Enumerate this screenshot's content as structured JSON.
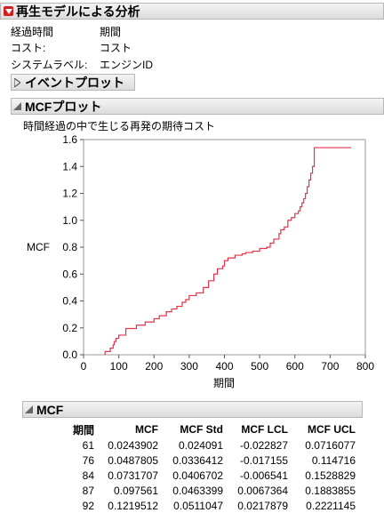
{
  "report": {
    "title": "再生モデルによる分析",
    "info": [
      {
        "key": "経過時間",
        "value": "期間"
      },
      {
        "key": "コスト:",
        "value": "コスト"
      },
      {
        "key": "システムラベル:",
        "value": "エンジンID"
      }
    ]
  },
  "event_plot": {
    "title": "イベントプロット"
  },
  "mcf_plot": {
    "title": "MCFプロット",
    "chart_title": "時間経過の中で生じる再発の期待コスト"
  },
  "chart_data": {
    "type": "line",
    "title": "時間経過の中で生じる再発の期待コスト",
    "xlabel": "期間",
    "ylabel": "MCF",
    "xlim": [
      0,
      800
    ],
    "ylim": [
      0,
      1.6
    ],
    "xticks": [
      "0",
      "100",
      "200",
      "300",
      "400",
      "500",
      "600",
      "700",
      "800"
    ],
    "yticks": [
      "0.0",
      "0.2",
      "0.4",
      "0.6",
      "0.8",
      "1.0",
      "1.2",
      "1.4",
      "1.6"
    ],
    "color": "#e0344a",
    "series": [
      {
        "x": [
          61,
          76,
          84,
          87,
          92,
          100,
          120,
          150,
          175,
          200,
          215,
          235,
          250,
          265,
          280,
          290,
          300,
          320,
          340,
          355,
          370,
          380,
          395,
          400,
          410,
          430,
          450,
          460,
          480,
          500,
          520,
          530,
          540,
          555,
          560,
          570,
          580,
          590,
          600,
          610,
          615,
          620,
          625,
          630,
          635,
          640,
          645,
          650,
          655,
          760
        ],
        "y": [
          0.024,
          0.049,
          0.073,
          0.098,
          0.122,
          0.146,
          0.195,
          0.22,
          0.244,
          0.268,
          0.29,
          0.32,
          0.34,
          0.36,
          0.39,
          0.41,
          0.44,
          0.46,
          0.5,
          0.55,
          0.6,
          0.64,
          0.66,
          0.7,
          0.72,
          0.74,
          0.75,
          0.76,
          0.77,
          0.79,
          0.8,
          0.83,
          0.86,
          0.9,
          0.93,
          0.95,
          1.0,
          1.02,
          1.05,
          1.07,
          1.1,
          1.13,
          1.16,
          1.2,
          1.25,
          1.3,
          1.35,
          1.4,
          1.54,
          1.54
        ]
      }
    ]
  },
  "mcf_table": {
    "title": "MCF",
    "headers": [
      "期間",
      "MCF",
      "MCF Std",
      "MCF LCL",
      "MCF UCL"
    ],
    "rows": [
      [
        "61",
        "0.0243902",
        "0.024091",
        "-0.022827",
        "0.0716077"
      ],
      [
        "76",
        "0.0487805",
        "0.0336412",
        "-0.017155",
        "0.114716"
      ],
      [
        "84",
        "0.0731707",
        "0.0406702",
        "-0.006541",
        "0.1528829"
      ],
      [
        "87",
        "0.097561",
        "0.0463399",
        "0.0067364",
        "0.1883855"
      ],
      [
        "92",
        "0.1219512",
        "0.0511047",
        "0.0217879",
        "0.2221145"
      ]
    ]
  }
}
